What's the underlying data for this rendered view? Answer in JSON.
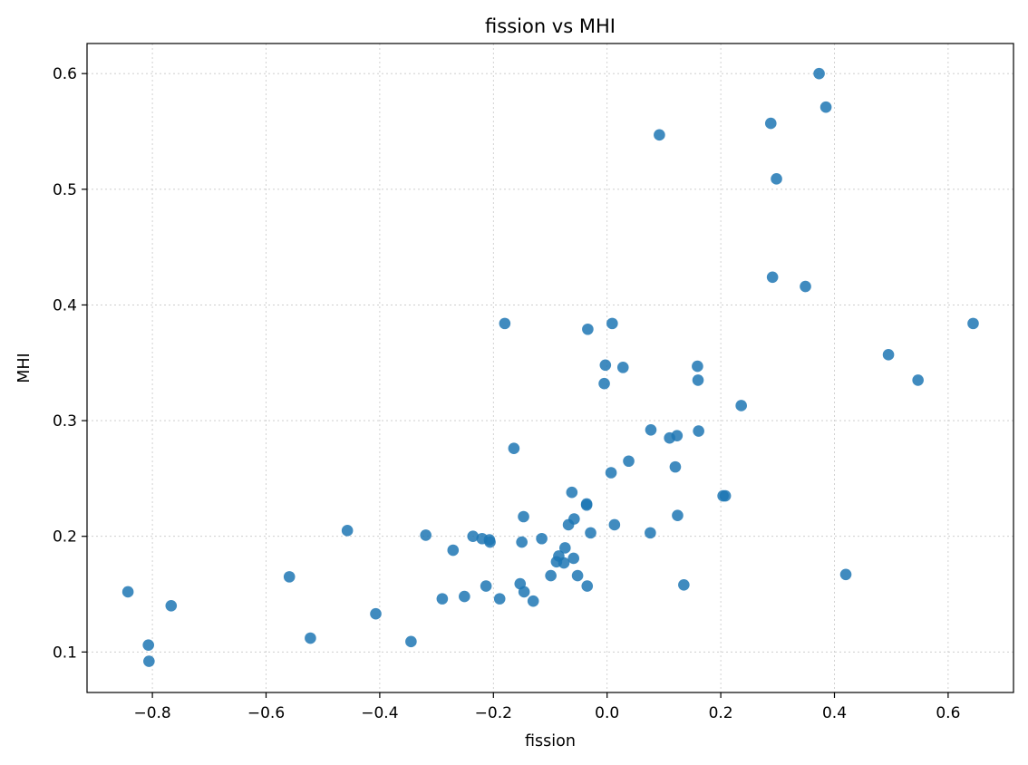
{
  "chart_data": {
    "type": "scatter",
    "title": "fission vs MHI",
    "xlabel": "fission",
    "ylabel": "MHI",
    "xlim": [
      -0.915,
      0.715
    ],
    "ylim": [
      0.065,
      0.626
    ],
    "xticks": [
      -0.8,
      -0.6,
      -0.4,
      -0.2,
      0.0,
      0.2,
      0.4,
      0.6
    ],
    "xtick_labels": [
      "−0.8",
      "−0.6",
      "−0.4",
      "−0.2",
      "0.0",
      "0.2",
      "0.4",
      "0.6"
    ],
    "yticks": [
      0.1,
      0.2,
      0.3,
      0.4,
      0.5,
      0.6
    ],
    "ytick_labels": [
      "0.1",
      "0.2",
      "0.3",
      "0.4",
      "0.5",
      "0.6"
    ],
    "grid": true,
    "color": "#1f77b4",
    "points": [
      [
        -0.843,
        0.152
      ],
      [
        -0.807,
        0.106
      ],
      [
        -0.806,
        0.092
      ],
      [
        -0.767,
        0.14
      ],
      [
        -0.559,
        0.165
      ],
      [
        -0.522,
        0.112
      ],
      [
        -0.457,
        0.205
      ],
      [
        -0.407,
        0.133
      ],
      [
        -0.345,
        0.109
      ],
      [
        -0.319,
        0.201
      ],
      [
        -0.29,
        0.146
      ],
      [
        -0.271,
        0.188
      ],
      [
        -0.251,
        0.148
      ],
      [
        -0.236,
        0.2
      ],
      [
        -0.22,
        0.198
      ],
      [
        -0.213,
        0.157
      ],
      [
        -0.207,
        0.197
      ],
      [
        -0.206,
        0.195
      ],
      [
        -0.189,
        0.146
      ],
      [
        -0.18,
        0.384
      ],
      [
        -0.164,
        0.276
      ],
      [
        -0.153,
        0.159
      ],
      [
        -0.15,
        0.195
      ],
      [
        -0.147,
        0.217
      ],
      [
        -0.146,
        0.152
      ],
      [
        -0.13,
        0.144
      ],
      [
        -0.115,
        0.198
      ],
      [
        -0.099,
        0.166
      ],
      [
        -0.089,
        0.178
      ],
      [
        -0.085,
        0.183
      ],
      [
        -0.076,
        0.177
      ],
      [
        -0.074,
        0.19
      ],
      [
        -0.068,
        0.21
      ],
      [
        -0.062,
        0.238
      ],
      [
        -0.059,
        0.181
      ],
      [
        -0.058,
        0.215
      ],
      [
        -0.052,
        0.166
      ],
      [
        -0.036,
        0.227
      ],
      [
        -0.036,
        0.228
      ],
      [
        -0.035,
        0.157
      ],
      [
        -0.034,
        0.379
      ],
      [
        -0.029,
        0.203
      ],
      [
        -0.005,
        0.332
      ],
      [
        -0.003,
        0.348
      ],
      [
        0.007,
        0.255
      ],
      [
        0.009,
        0.384
      ],
      [
        0.013,
        0.21
      ],
      [
        0.028,
        0.346
      ],
      [
        0.038,
        0.265
      ],
      [
        0.076,
        0.203
      ],
      [
        0.077,
        0.292
      ],
      [
        0.092,
        0.547
      ],
      [
        0.11,
        0.285
      ],
      [
        0.12,
        0.26
      ],
      [
        0.123,
        0.287
      ],
      [
        0.124,
        0.218
      ],
      [
        0.135,
        0.158
      ],
      [
        0.159,
        0.347
      ],
      [
        0.16,
        0.335
      ],
      [
        0.161,
        0.291
      ],
      [
        0.204,
        0.235
      ],
      [
        0.208,
        0.235
      ],
      [
        0.236,
        0.313
      ],
      [
        0.288,
        0.557
      ],
      [
        0.291,
        0.424
      ],
      [
        0.298,
        0.509
      ],
      [
        0.349,
        0.416
      ],
      [
        0.373,
        0.6
      ],
      [
        0.385,
        0.571
      ],
      [
        0.42,
        0.167
      ],
      [
        0.495,
        0.357
      ],
      [
        0.547,
        0.335
      ],
      [
        0.644,
        0.384
      ]
    ]
  }
}
